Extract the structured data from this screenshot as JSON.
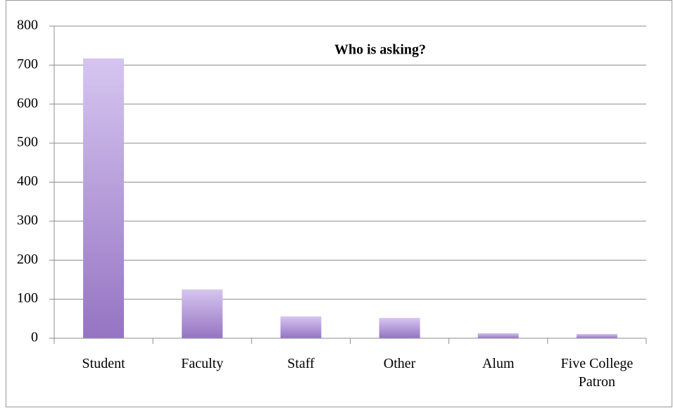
{
  "chart_data": {
    "type": "bar",
    "title": "Who is asking?",
    "categories": [
      "Student",
      "Faculty",
      "Staff",
      "Other",
      "Alum",
      "Five College Patron"
    ],
    "values": [
      717,
      125,
      56,
      52,
      13,
      11
    ],
    "gradient": [
      "#d6c5f0",
      "#9574c2"
    ],
    "ylim": [
      0,
      800
    ],
    "yticks": [
      0,
      100,
      200,
      300,
      400,
      500,
      600,
      700,
      800
    ],
    "grid": true
  }
}
